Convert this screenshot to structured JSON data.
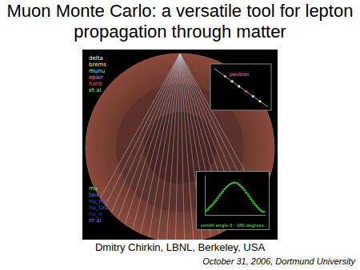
{
  "title": "Muon Monte Carlo: a versatile tool for lepton propagation through matter",
  "figure": {
    "legend_top": [
      "delta",
      "brems",
      "munu",
      "epair",
      "hard",
      "et al."
    ],
    "legend_bottom": [
      "mu",
      "tau",
      "nu_mu",
      "nu_tau",
      "nu_e",
      "et al."
    ],
    "inset_label": "positron"
  },
  "chart_data": {
    "type": "histogram",
    "title": "zenith angle 0 - 180 degrees",
    "bins": [
      0,
      5,
      10,
      15,
      20,
      25,
      30,
      35,
      40,
      45,
      50,
      55,
      60,
      65,
      70,
      75,
      80,
      85,
      90,
      95,
      100,
      105,
      110,
      115,
      120,
      125,
      130,
      135,
      140,
      145,
      150,
      155,
      160,
      165,
      170,
      175,
      180
    ],
    "values": [
      8,
      12,
      15,
      20,
      24,
      28,
      33,
      38,
      44,
      50,
      55,
      60,
      66,
      70,
      74,
      78,
      80,
      82,
      83,
      82,
      80,
      77,
      73,
      69,
      64,
      58,
      53,
      47,
      41,
      36,
      30,
      25,
      20,
      16,
      12,
      9
    ],
    "color": "#33cc33",
    "xlim": [
      0,
      180
    ],
    "ylim": [
      0,
      100
    ],
    "tick_labels": false,
    "grid": false
  },
  "author": "Dmitry Chirkin, LBNL, Berkeley, USA",
  "date": "October 31, 2006, Dortmund University"
}
